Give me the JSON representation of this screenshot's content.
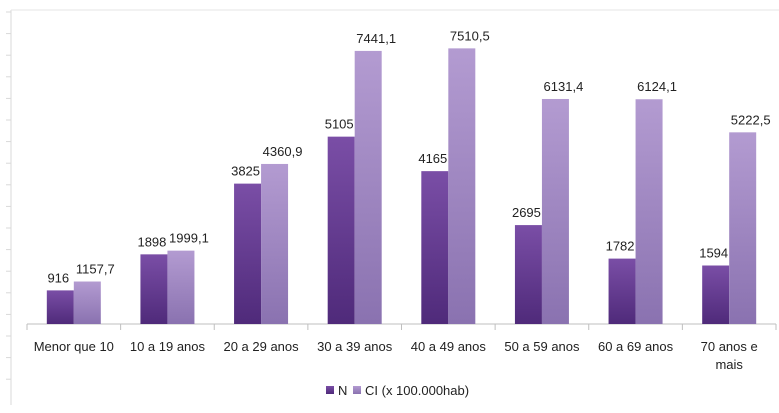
{
  "chart_data": {
    "type": "bar",
    "title": "",
    "xlabel": "",
    "ylabel": "",
    "ylim": [
      0,
      8500
    ],
    "grid": false,
    "legend_position": "bottom",
    "categories": [
      "Menor que 10",
      "10 a 19 anos",
      "20 a 29 anos",
      "30 a 39 anos",
      "40 a 49 anos",
      "50 a 59 anos",
      "60 a 69 anos",
      "70 anos e mais"
    ],
    "series": [
      {
        "name": "N",
        "values": [
          916,
          1898,
          3825,
          5105,
          4165,
          2695,
          1782,
          1594
        ],
        "labels": [
          "916",
          "1898",
          "3825",
          "5105",
          "4165",
          "2695",
          "1782",
          "1594"
        ],
        "color_top": "#7a4ea6",
        "color_bottom": "#4f2a7a"
      },
      {
        "name": "CI (x 100.000hab)",
        "values": [
          1157.7,
          1999.1,
          4360.9,
          7441.1,
          7510.5,
          6131.4,
          6124.1,
          5222.5
        ],
        "labels": [
          "1157,7",
          "1999,1",
          "4360,9",
          "7441,1",
          "7510,5",
          "6131,4",
          "6124,1",
          "5222,5"
        ],
        "color_top": "#b39bd1",
        "color_bottom": "#8a72b0"
      }
    ]
  }
}
